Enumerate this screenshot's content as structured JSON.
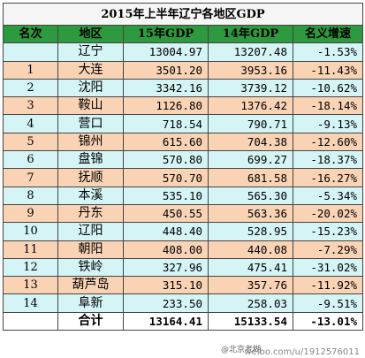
{
  "title": "2015年上半年辽宁各地区GDP",
  "headers": [
    "名次",
    "地区",
    "15年GDP",
    "14年GDP",
    "名义增速"
  ],
  "rows": [
    {
      "rank": "",
      "region": "辽宁",
      "gdp15": "13004.97",
      "gdp14": "13207.48",
      "growth": "-1.53%",
      "tone": "cyan"
    },
    {
      "rank": "1",
      "region": "大连",
      "gdp15": "3501.20",
      "gdp14": "3953.16",
      "growth": "-11.43%",
      "tone": "peach"
    },
    {
      "rank": "2",
      "region": "沈阳",
      "gdp15": "3342.16",
      "gdp14": "3739.12",
      "growth": "-10.62%",
      "tone": "cyan"
    },
    {
      "rank": "3",
      "region": "鞍山",
      "gdp15": "1126.80",
      "gdp14": "1376.42",
      "growth": "-18.14%",
      "tone": "peach"
    },
    {
      "rank": "4",
      "region": "营口",
      "gdp15": "718.54",
      "gdp14": "790.71",
      "growth": "-9.13%",
      "tone": "cyan"
    },
    {
      "rank": "5",
      "region": "锦州",
      "gdp15": "615.60",
      "gdp14": "704.38",
      "growth": "-12.60%",
      "tone": "peach"
    },
    {
      "rank": "6",
      "region": "盘锦",
      "gdp15": "570.80",
      "gdp14": "699.27",
      "growth": "-18.37%",
      "tone": "cyan"
    },
    {
      "rank": "7",
      "region": "抚顺",
      "gdp15": "570.70",
      "gdp14": "681.58",
      "growth": "-16.27%",
      "tone": "peach"
    },
    {
      "rank": "8",
      "region": "本溪",
      "gdp15": "535.10",
      "gdp14": "565.30",
      "growth": "-5.34%",
      "tone": "cyan"
    },
    {
      "rank": "9",
      "region": "丹东",
      "gdp15": "450.55",
      "gdp14": "563.36",
      "growth": "-20.02%",
      "tone": "peach"
    },
    {
      "rank": "10",
      "region": "辽阳",
      "gdp15": "448.40",
      "gdp14": "528.95",
      "growth": "-15.23%",
      "tone": "cyan"
    },
    {
      "rank": "11",
      "region": "朝阳",
      "gdp15": "408.00",
      "gdp14": "440.08",
      "growth": "-7.29%",
      "tone": "peach"
    },
    {
      "rank": "12",
      "region": "铁岭",
      "gdp15": "327.96",
      "gdp14": "475.41",
      "growth": "-31.02%",
      "tone": "cyan"
    },
    {
      "rank": "13",
      "region": "葫芦岛",
      "gdp15": "315.10",
      "gdp14": "357.76",
      "growth": "-11.92%",
      "tone": "peach"
    },
    {
      "rank": "14",
      "region": "阜新",
      "gdp15": "233.50",
      "gdp14": "258.03",
      "growth": "-9.51%",
      "tone": "cyan"
    },
    {
      "rank": "",
      "region": "合计",
      "gdp15": "13164.41",
      "gdp14": "15133.54",
      "growth": "-13.01%",
      "tone": "white"
    }
  ],
  "watermark": {
    "handle": "@北京老糊",
    "url": "weibo.com/u/1912576011"
  },
  "colors": {
    "header_bg": "#2e9a3f",
    "row_cyan": "#d4f4f6",
    "row_peach": "#fad2b4"
  }
}
